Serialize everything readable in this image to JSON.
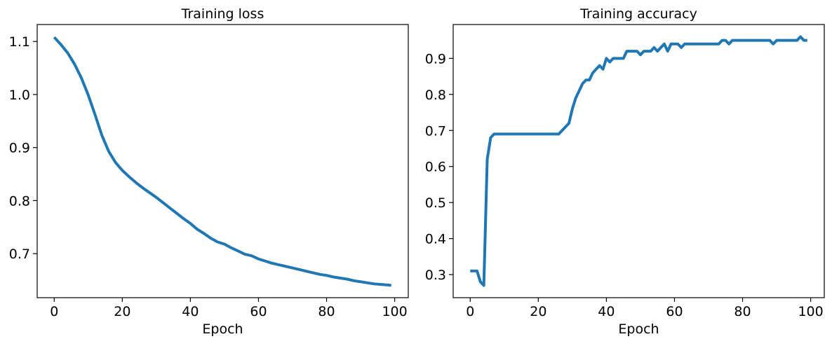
{
  "chart_data": [
    {
      "type": "line",
      "title": "Training loss",
      "xlabel": "Epoch",
      "ylabel": "",
      "xlim": [
        -5,
        104
      ],
      "ylim": [
        0.617,
        1.132
      ],
      "xticks": [
        0,
        20,
        40,
        60,
        80,
        100
      ],
      "yticks": [
        0.7,
        0.8,
        0.9,
        1.0,
        1.1
      ],
      "ytick_labels": [
        "0.7",
        "0.8",
        "0.9",
        "1.0",
        "1.1"
      ],
      "grid": false,
      "color": "#1f77b4",
      "series": [
        {
          "x": [
            0,
            2,
            4,
            6,
            8,
            10,
            12,
            14,
            16,
            18,
            20,
            22,
            24,
            26,
            28,
            30,
            32,
            34,
            36,
            38,
            40,
            42,
            44,
            46,
            48,
            50,
            52,
            54,
            56,
            58,
            60,
            62,
            64,
            66,
            68,
            70,
            72,
            74,
            76,
            78,
            80,
            82,
            84,
            86,
            88,
            90,
            92,
            94,
            96,
            98,
            99
          ],
          "values": [
            1.108,
            1.094,
            1.078,
            1.057,
            1.031,
            0.999,
            0.962,
            0.923,
            0.893,
            0.872,
            0.857,
            0.845,
            0.834,
            0.824,
            0.815,
            0.806,
            0.796,
            0.786,
            0.776,
            0.766,
            0.757,
            0.746,
            0.738,
            0.729,
            0.722,
            0.718,
            0.711,
            0.705,
            0.699,
            0.696,
            0.69,
            0.686,
            0.682,
            0.679,
            0.676,
            0.673,
            0.67,
            0.667,
            0.664,
            0.661,
            0.659,
            0.656,
            0.654,
            0.652,
            0.649,
            0.647,
            0.645,
            0.643,
            0.642,
            0.641,
            0.64
          ]
        }
      ]
    },
    {
      "type": "line",
      "title": "Training accuracy",
      "xlabel": "Epoch",
      "ylabel": "",
      "xlim": [
        -5,
        104
      ],
      "ylim": [
        0.236,
        0.994
      ],
      "xticks": [
        0,
        20,
        40,
        60,
        80,
        100
      ],
      "yticks": [
        0.3,
        0.4,
        0.5,
        0.6,
        0.7,
        0.8,
        0.9
      ],
      "ytick_labels": [
        "0.3",
        "0.4",
        "0.5",
        "0.6",
        "0.7",
        "0.8",
        "0.9"
      ],
      "grid": false,
      "color": "#1f77b4",
      "series": [
        {
          "x": [
            0,
            1,
            2,
            3,
            4,
            5,
            6,
            7,
            8,
            10,
            12,
            14,
            16,
            18,
            20,
            22,
            24,
            26,
            27,
            28,
            29,
            30,
            31,
            32,
            33,
            34,
            35,
            36,
            37,
            38,
            39,
            40,
            41,
            42,
            43,
            44,
            45,
            46,
            47,
            48,
            49,
            50,
            51,
            52,
            53,
            54,
            55,
            56,
            57,
            58,
            59,
            60,
            61,
            62,
            63,
            64,
            65,
            66,
            67,
            68,
            69,
            70,
            71,
            72,
            73,
            74,
            75,
            76,
            77,
            78,
            79,
            80,
            81,
            82,
            83,
            84,
            85,
            86,
            87,
            88,
            89,
            90,
            91,
            92,
            93,
            94,
            95,
            96,
            97,
            98,
            99
          ],
          "values": [
            0.31,
            0.31,
            0.31,
            0.28,
            0.27,
            0.62,
            0.68,
            0.69,
            0.69,
            0.69,
            0.69,
            0.69,
            0.69,
            0.69,
            0.69,
            0.69,
            0.69,
            0.69,
            0.7,
            0.71,
            0.72,
            0.76,
            0.79,
            0.81,
            0.83,
            0.84,
            0.84,
            0.86,
            0.87,
            0.88,
            0.87,
            0.9,
            0.89,
            0.9,
            0.9,
            0.9,
            0.9,
            0.92,
            0.92,
            0.92,
            0.92,
            0.91,
            0.92,
            0.92,
            0.92,
            0.93,
            0.92,
            0.93,
            0.94,
            0.92,
            0.94,
            0.94,
            0.94,
            0.93,
            0.94,
            0.94,
            0.94,
            0.94,
            0.94,
            0.94,
            0.94,
            0.94,
            0.94,
            0.94,
            0.94,
            0.95,
            0.95,
            0.94,
            0.95,
            0.95,
            0.95,
            0.95,
            0.95,
            0.95,
            0.95,
            0.95,
            0.95,
            0.95,
            0.95,
            0.95,
            0.94,
            0.95,
            0.95,
            0.95,
            0.95,
            0.95,
            0.95,
            0.95,
            0.96,
            0.95,
            0.95
          ]
        }
      ]
    }
  ]
}
